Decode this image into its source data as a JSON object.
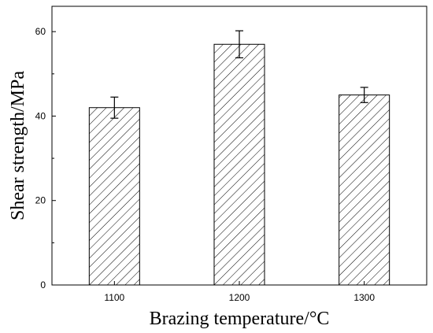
{
  "chart_data": {
    "type": "bar",
    "title": "",
    "xlabel": "Brazing temperature/°C",
    "ylabel": "Shear strength/MPa",
    "categories": [
      "1100",
      "1200",
      "1300"
    ],
    "values": [
      42,
      57,
      45
    ],
    "errors": [
      2.5,
      3.2,
      1.8
    ],
    "ylim": [
      0,
      66
    ],
    "yticks": [
      "0",
      "20",
      "40",
      "60"
    ],
    "grid": false,
    "bar_fill": "hatched",
    "colors": {
      "bar_stroke": "#000000",
      "hatch": "#000000",
      "background": "#ffffff"
    }
  }
}
